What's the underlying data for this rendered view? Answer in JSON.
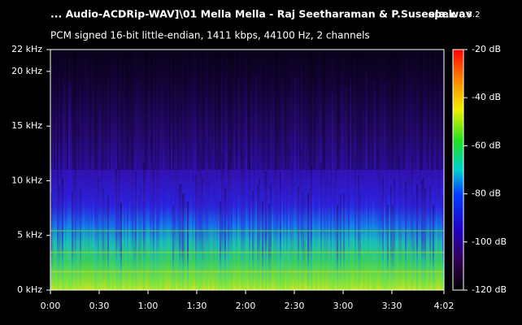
{
  "chart_data": {
    "type": "spectrogram",
    "title": "... Audio-ACDRip-WAV]\\01 Mella Mella - Raj Seetharaman & P.Suseela.wav",
    "app_name": "spek",
    "app_version": "0.8.2",
    "subtitle": "PCM signed 16-bit little-endian, 1411 kbps, 44100 Hz, 2 channels",
    "xlim": [
      0,
      242
    ],
    "xticks": [
      {
        "value": 0,
        "label": "0:00"
      },
      {
        "value": 30,
        "label": "0:30"
      },
      {
        "value": 60,
        "label": "1:00"
      },
      {
        "value": 90,
        "label": "1:30"
      },
      {
        "value": 120,
        "label": "2:00"
      },
      {
        "value": 150,
        "label": "2:30"
      },
      {
        "value": 180,
        "label": "3:00"
      },
      {
        "value": 210,
        "label": "3:30"
      },
      {
        "value": 242,
        "label": "4:02"
      }
    ],
    "ylim": [
      0,
      22
    ],
    "yticks": [
      {
        "value": 0,
        "label": "0 kHz"
      },
      {
        "value": 5,
        "label": "5 kHz"
      },
      {
        "value": 10,
        "label": "10 kHz"
      },
      {
        "value": 15,
        "label": "15 kHz"
      },
      {
        "value": 20,
        "label": "20 kHz"
      },
      {
        "value": 22,
        "label": "22 kHz"
      }
    ],
    "colorbar": {
      "lim": [
        -120,
        -20
      ],
      "ticks": [
        {
          "value": -20,
          "label": "-20 dB"
        },
        {
          "value": -40,
          "label": "-40 dB"
        },
        {
          "value": -60,
          "label": "-60 dB"
        },
        {
          "value": -80,
          "label": "-80 dB"
        },
        {
          "value": -100,
          "label": "-100 dB"
        },
        {
          "value": -120,
          "label": "-120 dB"
        }
      ]
    }
  }
}
